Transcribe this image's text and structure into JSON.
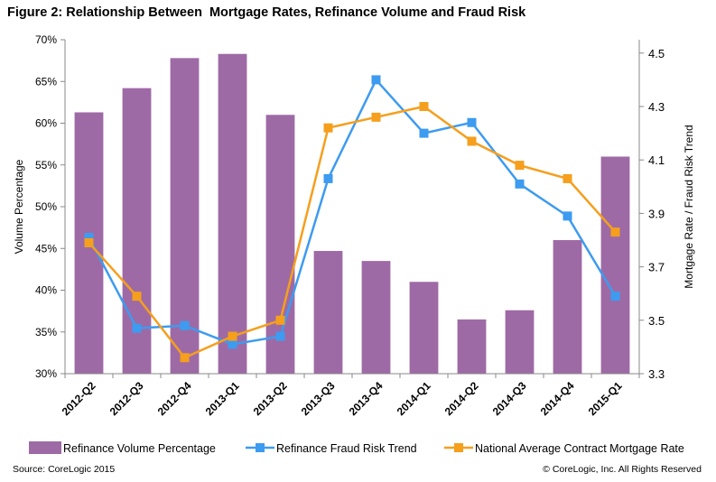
{
  "title": "Figure 2: Relationship Between  Mortgage Rates, Refinance Volume and Fraud Risk",
  "source": "Source: CoreLogic 2015",
  "copyright": "© CoreLogic, Inc. All Rights Reserved",
  "colors": {
    "bar": "#9e6aa5",
    "fraud": "#3d9bf0",
    "rate": "#f59f1d",
    "axis": "#888888"
  },
  "chart_data": {
    "type": "bar+line",
    "categories": [
      "2012-Q2",
      "2012-Q3",
      "2012-Q4",
      "2013-Q1",
      "2013-Q2",
      "2013-Q3",
      "2013-Q4",
      "2014-Q1",
      "2014-Q2",
      "2014-Q3",
      "2014-Q4",
      "2015-Q1"
    ],
    "ylabel_left": "Volume Percentage",
    "ylabel_right": "Mortgage Rate / Fraud Risk Trend",
    "ylim_left": [
      30,
      70
    ],
    "yticks_left": [
      "30%",
      "35%",
      "40%",
      "45%",
      "50%",
      "55%",
      "60%",
      "65%",
      "70%"
    ],
    "ylim_right": [
      3.3,
      4.55
    ],
    "yticks_right": [
      "3.3",
      "3.5",
      "3.7",
      "3.9",
      "4.1",
      "4.3",
      "4.5"
    ],
    "series": [
      {
        "name": "Refinance Volume Percentage",
        "axis": "left",
        "kind": "bar",
        "values": [
          61.3,
          64.2,
          67.8,
          68.3,
          61.0,
          44.7,
          43.5,
          41.0,
          36.5,
          37.6,
          46.0,
          56.0
        ]
      },
      {
        "name": "Refinance Fraud Risk Trend",
        "axis": "right",
        "kind": "line",
        "values": [
          3.81,
          3.47,
          3.48,
          3.41,
          3.44,
          4.03,
          4.4,
          4.2,
          4.24,
          4.01,
          3.89,
          3.59
        ]
      },
      {
        "name": "National Average Contract Mortgage Rate",
        "axis": "right",
        "kind": "line",
        "values": [
          3.79,
          3.59,
          3.36,
          3.44,
          3.5,
          4.22,
          4.26,
          4.3,
          4.17,
          4.08,
          4.03,
          3.83
        ]
      }
    ]
  }
}
